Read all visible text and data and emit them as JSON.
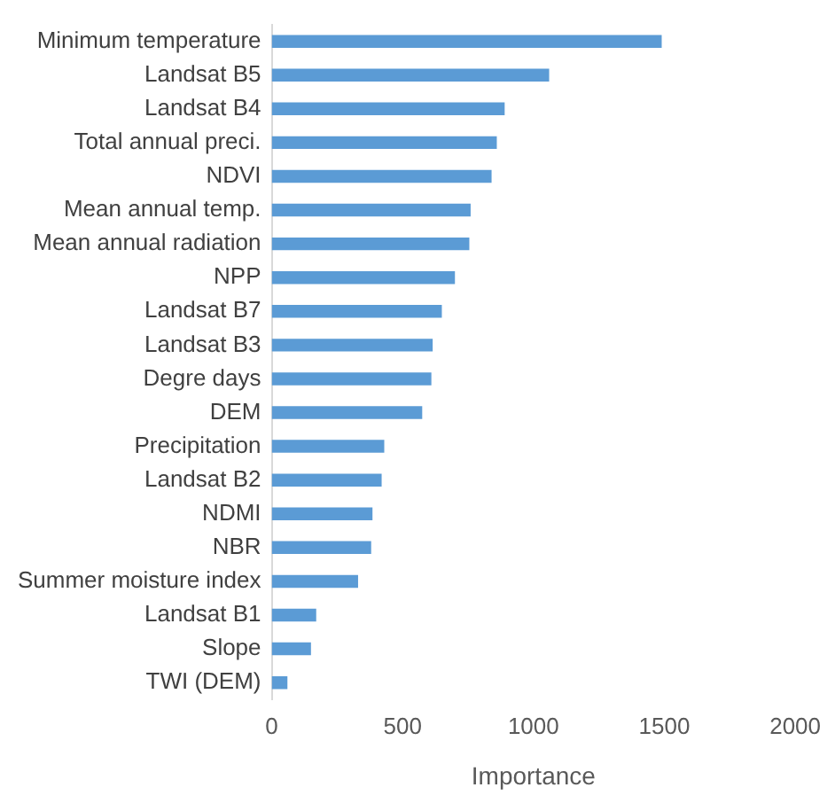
{
  "chart_data": {
    "type": "bar",
    "orientation": "horizontal",
    "xlabel": "Importance",
    "categories": [
      "Minimum temperature",
      "Landsat B5",
      "Landsat B4",
      "Total annual preci.",
      "NDVI",
      "Mean annual temp.",
      "Mean annual radiation",
      "NPP",
      "Landsat B7",
      "Landsat B3",
      "Degre days",
      "DEM",
      "Precipitation",
      "Landsat B2",
      "NDMI",
      "NBR",
      "Summer moisture index",
      "Landsat B1",
      "Slope",
      "TWI (DEM)"
    ],
    "values": [
      1490,
      1060,
      890,
      860,
      840,
      760,
      755,
      700,
      650,
      615,
      610,
      575,
      430,
      420,
      385,
      380,
      330,
      170,
      150,
      60
    ],
    "color": "#5b9bd5",
    "xlim": [
      0,
      2000
    ],
    "xticks": [
      0,
      500,
      1000,
      1500,
      2000
    ],
    "grid": false,
    "legend": false
  }
}
